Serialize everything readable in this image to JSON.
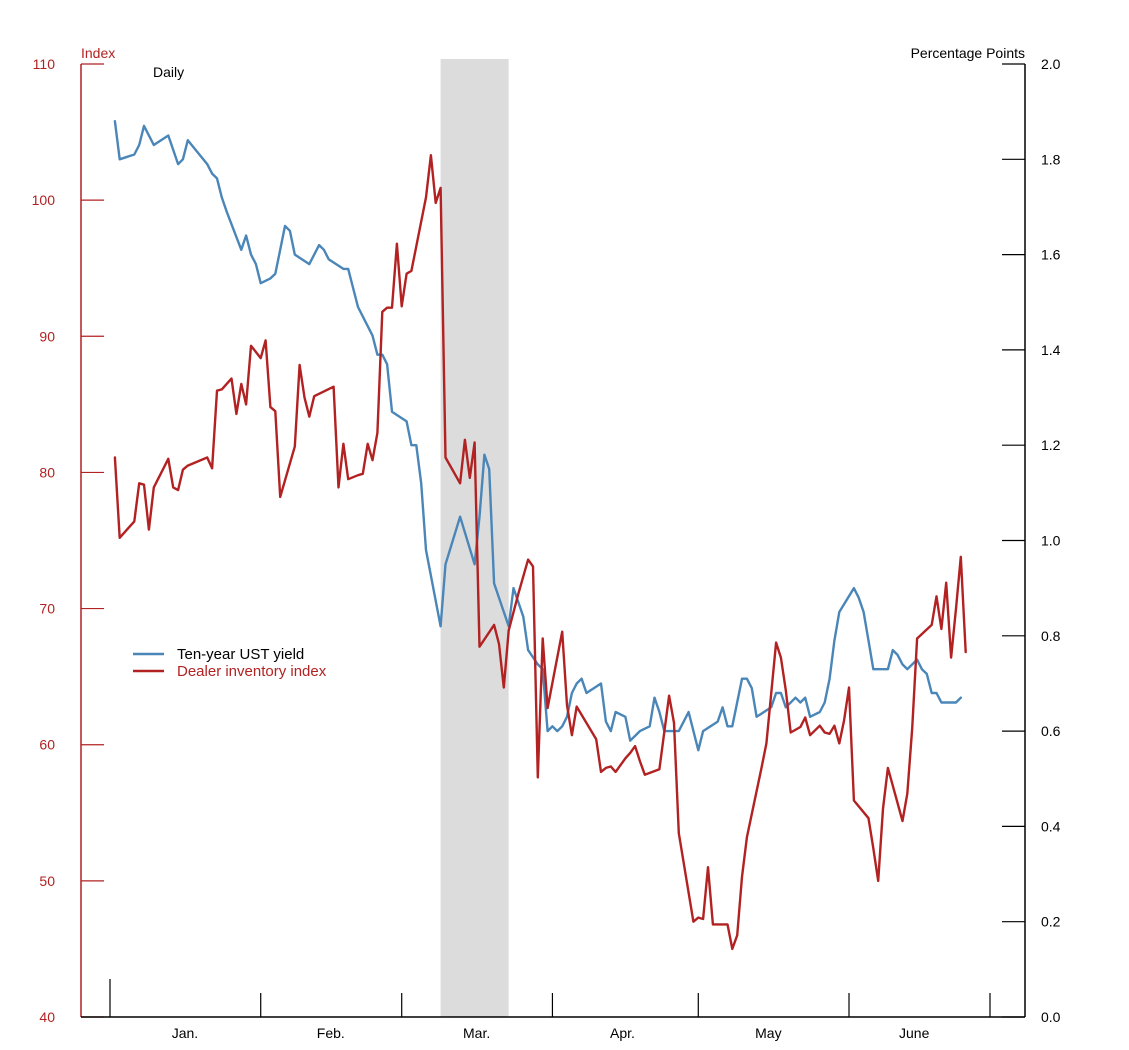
{
  "chart_data": {
    "type": "line",
    "frequency_label": "Daily",
    "left_axis": {
      "label": "Index",
      "range": [
        40,
        110
      ],
      "ticks": [
        "110",
        "100",
        "90",
        "80",
        "70",
        "60",
        "50",
        "40"
      ],
      "color": "#b22222"
    },
    "right_axis": {
      "label": "Percentage Points",
      "range": [
        0.0,
        2.0
      ],
      "ticks": [
        "2.0",
        "1.8",
        "1.6",
        "1.4",
        "1.2",
        "1.0",
        "0.8",
        "0.6",
        "0.4",
        "0.2",
        "0.0"
      ],
      "color": "#000000"
    },
    "x_axis": {
      "range_days": [
        0,
        181
      ],
      "month_labels": [
        {
          "label": "Jan.",
          "center_day": 15
        },
        {
          "label": "Feb.",
          "center_day": 45
        },
        {
          "label": "Mar.",
          "center_day": 75
        },
        {
          "label": "Apr.",
          "center_day": 105
        },
        {
          "label": "May",
          "center_day": 135
        },
        {
          "label": "June",
          "center_day": 165
        }
      ],
      "tick_days": [
        0,
        31,
        60,
        91,
        121,
        152,
        181
      ]
    },
    "shaded_region_days": [
      68,
      82
    ],
    "legend": {
      "placement": "middle-left",
      "entries": [
        {
          "label": "Ten-year UST yield",
          "color": "#4a86b8"
        },
        {
          "label": "Dealer inventory index",
          "color": "#b22222"
        }
      ]
    },
    "series": [
      {
        "name": "Ten-year UST yield",
        "axis": "right",
        "color": "#4a86b8",
        "points": [
          [
            1,
            1.88
          ],
          [
            2,
            1.8
          ],
          [
            5,
            1.81
          ],
          [
            6,
            1.83
          ],
          [
            7,
            1.87
          ],
          [
            9,
            1.83
          ],
          [
            12,
            1.85
          ],
          [
            14,
            1.79
          ],
          [
            15,
            1.8
          ],
          [
            16,
            1.84
          ],
          [
            20,
            1.79
          ],
          [
            21,
            1.77
          ],
          [
            22,
            1.76
          ],
          [
            23,
            1.72
          ],
          [
            24,
            1.69
          ],
          [
            27,
            1.61
          ],
          [
            28,
            1.64
          ],
          [
            29,
            1.6
          ],
          [
            30,
            1.58
          ],
          [
            31,
            1.54
          ],
          [
            33,
            1.55
          ],
          [
            34,
            1.56
          ],
          [
            35,
            1.61
          ],
          [
            36,
            1.66
          ],
          [
            37,
            1.65
          ],
          [
            38,
            1.6
          ],
          [
            41,
            1.58
          ],
          [
            43,
            1.62
          ],
          [
            44,
            1.61
          ],
          [
            45,
            1.59
          ],
          [
            48,
            1.57
          ],
          [
            49,
            1.57
          ],
          [
            50,
            1.53
          ],
          [
            51,
            1.49
          ],
          [
            54,
            1.43
          ],
          [
            55,
            1.39
          ],
          [
            56,
            1.39
          ],
          [
            57,
            1.37
          ],
          [
            58,
            1.27
          ],
          [
            61,
            1.25
          ],
          [
            62,
            1.2
          ],
          [
            63,
            1.2
          ],
          [
            64,
            1.12
          ],
          [
            65,
            0.98
          ],
          [
            68,
            0.82
          ],
          [
            69,
            0.95
          ],
          [
            72,
            1.05
          ],
          [
            75,
            0.95
          ],
          [
            76,
            1.05
          ],
          [
            77,
            1.18
          ],
          [
            78,
            1.15
          ],
          [
            79,
            0.91
          ],
          [
            82,
            0.82
          ],
          [
            83,
            0.9
          ],
          [
            84,
            0.87
          ],
          [
            85,
            0.84
          ],
          [
            86,
            0.77
          ],
          [
            88,
            0.74
          ],
          [
            89,
            0.73
          ],
          [
            90,
            0.6
          ],
          [
            91,
            0.61
          ],
          [
            92,
            0.6
          ],
          [
            93,
            0.61
          ],
          [
            94,
            0.63
          ],
          [
            95,
            0.68
          ],
          [
            96,
            0.7
          ],
          [
            97,
            0.71
          ],
          [
            98,
            0.68
          ],
          [
            101,
            0.7
          ],
          [
            102,
            0.62
          ],
          [
            103,
            0.6
          ],
          [
            104,
            0.64
          ],
          [
            106,
            0.63
          ],
          [
            107,
            0.58
          ],
          [
            108,
            0.59
          ],
          [
            109,
            0.6
          ],
          [
            111,
            0.61
          ],
          [
            112,
            0.67
          ],
          [
            113,
            0.64
          ],
          [
            114,
            0.6
          ],
          [
            117,
            0.6
          ],
          [
            118,
            0.62
          ],
          [
            119,
            0.64
          ],
          [
            121,
            0.56
          ],
          [
            122,
            0.6
          ],
          [
            125,
            0.62
          ],
          [
            126,
            0.65
          ],
          [
            127,
            0.61
          ],
          [
            128,
            0.61
          ],
          [
            130,
            0.71
          ],
          [
            131,
            0.71
          ],
          [
            132,
            0.69
          ],
          [
            133,
            0.63
          ],
          [
            136,
            0.65
          ],
          [
            137,
            0.68
          ],
          [
            138,
            0.68
          ],
          [
            139,
            0.65
          ],
          [
            140,
            0.66
          ],
          [
            141,
            0.67
          ],
          [
            142,
            0.66
          ],
          [
            143,
            0.67
          ],
          [
            144,
            0.63
          ],
          [
            146,
            0.64
          ],
          [
            147,
            0.66
          ],
          [
            148,
            0.71
          ],
          [
            149,
            0.79
          ],
          [
            150,
            0.85
          ],
          [
            153,
            0.9
          ],
          [
            154,
            0.88
          ],
          [
            155,
            0.85
          ],
          [
            156,
            0.79
          ],
          [
            157,
            0.73
          ],
          [
            160,
            0.73
          ],
          [
            161,
            0.77
          ],
          [
            162,
            0.76
          ],
          [
            163,
            0.74
          ],
          [
            164,
            0.73
          ],
          [
            166,
            0.75
          ],
          [
            167,
            0.73
          ],
          [
            168,
            0.72
          ],
          [
            169,
            0.68
          ],
          [
            170,
            0.68
          ],
          [
            171,
            0.66
          ],
          [
            174,
            0.66
          ],
          [
            175,
            0.67
          ]
        ]
      },
      {
        "name": "Dealer inventory index",
        "axis": "left",
        "color": "#b22222",
        "points": [
          [
            1,
            81.1
          ],
          [
            2,
            75.2
          ],
          [
            5,
            76.4
          ],
          [
            6,
            79.2
          ],
          [
            7,
            79.1
          ],
          [
            8,
            75.8
          ],
          [
            9,
            78.9
          ],
          [
            12,
            81.0
          ],
          [
            13,
            78.9
          ],
          [
            14,
            78.7
          ],
          [
            15,
            80.2
          ],
          [
            16,
            80.5
          ],
          [
            20,
            81.1
          ],
          [
            21,
            80.3
          ],
          [
            22,
            86.0
          ],
          [
            23,
            86.1
          ],
          [
            25,
            86.9
          ],
          [
            26,
            84.3
          ],
          [
            27,
            86.5
          ],
          [
            28,
            85.0
          ],
          [
            29,
            89.3
          ],
          [
            31,
            88.4
          ],
          [
            32,
            89.7
          ],
          [
            33,
            84.8
          ],
          [
            34,
            84.5
          ],
          [
            35,
            78.2
          ],
          [
            38,
            81.9
          ],
          [
            39,
            87.9
          ],
          [
            40,
            85.5
          ],
          [
            41,
            84.1
          ],
          [
            42,
            85.6
          ],
          [
            46,
            86.3
          ],
          [
            47,
            78.9
          ],
          [
            48,
            82.1
          ],
          [
            49,
            79.5
          ],
          [
            51,
            79.8
          ],
          [
            52,
            79.9
          ],
          [
            53,
            82.1
          ],
          [
            54,
            80.9
          ],
          [
            55,
            82.9
          ],
          [
            56,
            91.8
          ],
          [
            57,
            92.1
          ],
          [
            58,
            92.1
          ],
          [
            59,
            96.8
          ],
          [
            60,
            92.2
          ],
          [
            61,
            94.6
          ],
          [
            62,
            94.8
          ],
          [
            65,
            100.2
          ],
          [
            66,
            103.3
          ],
          [
            67,
            99.8
          ],
          [
            68,
            100.9
          ],
          [
            69,
            81.1
          ],
          [
            72,
            79.2
          ],
          [
            73,
            82.4
          ],
          [
            74,
            79.6
          ],
          [
            75,
            82.2
          ],
          [
            76,
            67.2
          ],
          [
            79,
            68.8
          ],
          [
            80,
            67.4
          ],
          [
            81,
            64.2
          ],
          [
            82,
            68.4
          ],
          [
            84,
            71.1
          ],
          [
            86,
            73.6
          ],
          [
            87,
            73.1
          ],
          [
            88,
            57.6
          ],
          [
            89,
            67.8
          ],
          [
            90,
            62.7
          ],
          [
            93,
            68.3
          ],
          [
            94,
            62.9
          ],
          [
            95,
            60.7
          ],
          [
            96,
            62.8
          ],
          [
            100,
            60.4
          ],
          [
            101,
            58.0
          ],
          [
            102,
            58.3
          ],
          [
            103,
            58.4
          ],
          [
            104,
            58.0
          ],
          [
            106,
            59.0
          ],
          [
            107,
            59.4
          ],
          [
            108,
            59.9
          ],
          [
            109,
            58.8
          ],
          [
            110,
            57.8
          ],
          [
            113,
            58.2
          ],
          [
            115,
            63.6
          ],
          [
            116,
            61.6
          ],
          [
            117,
            53.5
          ],
          [
            120,
            47.0
          ],
          [
            121,
            47.3
          ],
          [
            122,
            47.2
          ],
          [
            123,
            51.0
          ],
          [
            124,
            46.8
          ],
          [
            127,
            46.8
          ],
          [
            128,
            45.0
          ],
          [
            129,
            46.0
          ],
          [
            130,
            50.3
          ],
          [
            131,
            53.2
          ],
          [
            134,
            58.3
          ],
          [
            135,
            60.1
          ],
          [
            137,
            67.5
          ],
          [
            138,
            66.4
          ],
          [
            139,
            64.0
          ],
          [
            140,
            60.9
          ],
          [
            142,
            61.3
          ],
          [
            143,
            62.0
          ],
          [
            144,
            60.7
          ],
          [
            146,
            61.4
          ],
          [
            147,
            60.9
          ],
          [
            148,
            60.8
          ],
          [
            149,
            61.4
          ],
          [
            150,
            60.1
          ],
          [
            151,
            61.8
          ],
          [
            152,
            64.2
          ],
          [
            153,
            55.9
          ],
          [
            156,
            54.6
          ],
          [
            157,
            52.4
          ],
          [
            158,
            50.0
          ],
          [
            159,
            55.3
          ],
          [
            160,
            58.3
          ],
          [
            163,
            54.4
          ],
          [
            164,
            56.4
          ],
          [
            165,
            61.2
          ],
          [
            166,
            67.8
          ],
          [
            169,
            68.8
          ],
          [
            170,
            70.9
          ],
          [
            171,
            68.5
          ],
          [
            172,
            71.9
          ],
          [
            173,
            66.4
          ],
          [
            174,
            70.0
          ],
          [
            175,
            73.8
          ],
          [
            176,
            66.8
          ]
        ]
      }
    ]
  }
}
